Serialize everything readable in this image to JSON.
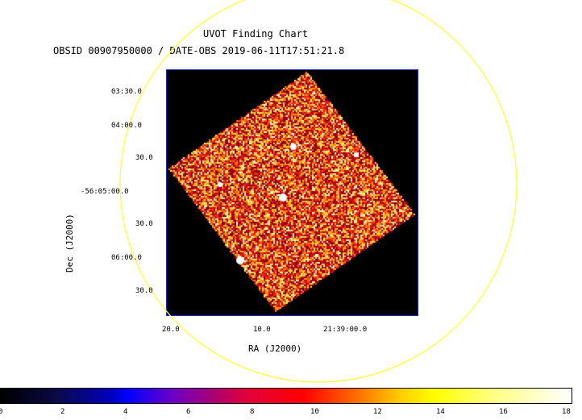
{
  "header": {
    "title": "UVOT Finding Chart",
    "subtitle": "OBSID 00907950000 / DATE-OBS 2019-06-11T17:51:21.8"
  },
  "axes": {
    "xlabel": "RA (J2000)",
    "ylabel": "Dec (J2000)",
    "dec_ticks": [
      "03:30.0",
      "04:00.0",
      "30.0",
      "-56:05:00.0",
      "30.0",
      "06:00.0",
      "30.0"
    ],
    "ra_ticks": [
      "20.0",
      "10.0",
      "21:39:00.0"
    ]
  },
  "colorbar": {
    "ticks": [
      "0",
      "2",
      "4",
      "6",
      "8",
      "10",
      "12",
      "14",
      "16",
      "18"
    ],
    "min": 0,
    "max": 18.5
  },
  "colors": {
    "circle": "#ffff33",
    "frame": "#2222cc",
    "background": "#000000"
  }
}
